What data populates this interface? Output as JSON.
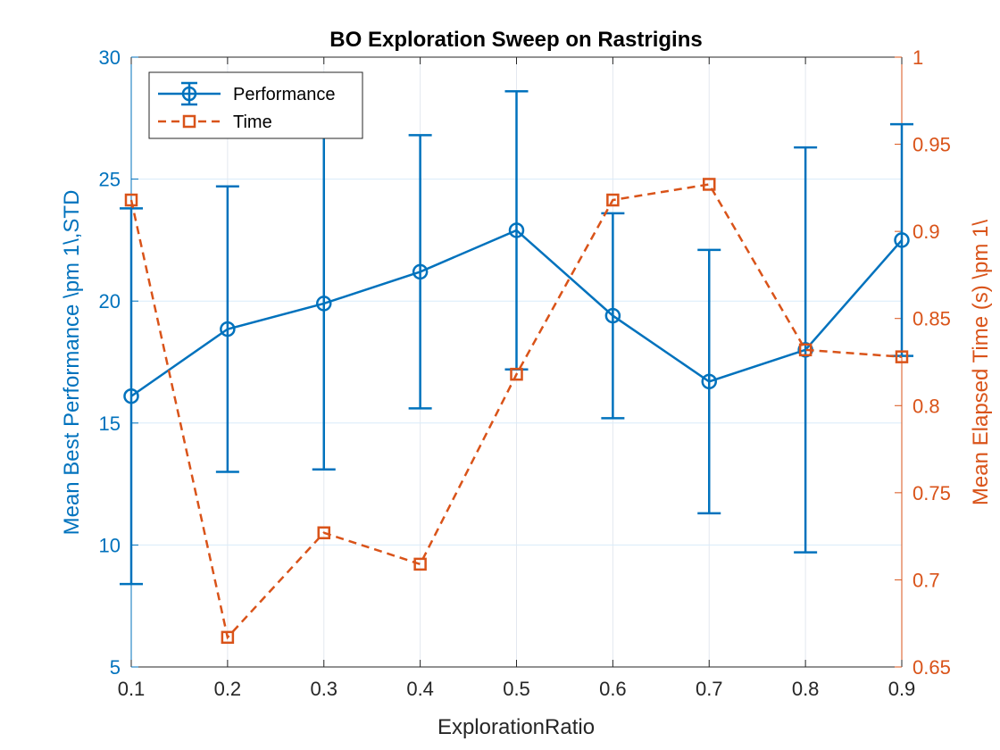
{
  "chart_data": {
    "type": "line",
    "title": "BO Exploration Sweep on Rastrigins",
    "xlabel": "ExplorationRatio",
    "ylabel_left": "Mean Best Performance \\pm 1\\,STD",
    "ylabel_right": "Mean Elapsed Time (s) \\pm 1\\",
    "x": [
      0.1,
      0.2,
      0.3,
      0.4,
      0.5,
      0.6,
      0.7,
      0.8,
      0.9
    ],
    "x_ticks": [
      "0.1",
      "0.2",
      "0.3",
      "0.4",
      "0.5",
      "0.6",
      "0.7",
      "0.8",
      "0.9"
    ],
    "xlim": [
      0.1,
      0.9
    ],
    "ylim_left": [
      5,
      30
    ],
    "y_ticks_left": [
      "5",
      "10",
      "15",
      "20",
      "25",
      "30"
    ],
    "ylim_right": [
      0.65,
      1.0
    ],
    "y_ticks_right": [
      "0.65",
      "0.7",
      "0.75",
      "0.8",
      "0.85",
      "0.9",
      "0.95",
      "1"
    ],
    "grid": true,
    "legend_position": "top-left",
    "series": [
      {
        "name": "Performance",
        "axis": "left",
        "style": "solid line with circle markers and error bars",
        "color": "#0072BD",
        "values": [
          16.1,
          18.85,
          19.9,
          21.2,
          22.9,
          19.4,
          16.7,
          18.0,
          22.5
        ],
        "error": [
          7.7,
          5.85,
          6.8,
          5.6,
          5.7,
          4.2,
          5.4,
          8.3,
          4.75
        ]
      },
      {
        "name": "Time",
        "axis": "right",
        "style": "dashed line with square markers",
        "color": "#D95319",
        "values": [
          0.918,
          0.667,
          0.727,
          0.709,
          0.818,
          0.918,
          0.927,
          0.832,
          0.828
        ]
      }
    ]
  }
}
